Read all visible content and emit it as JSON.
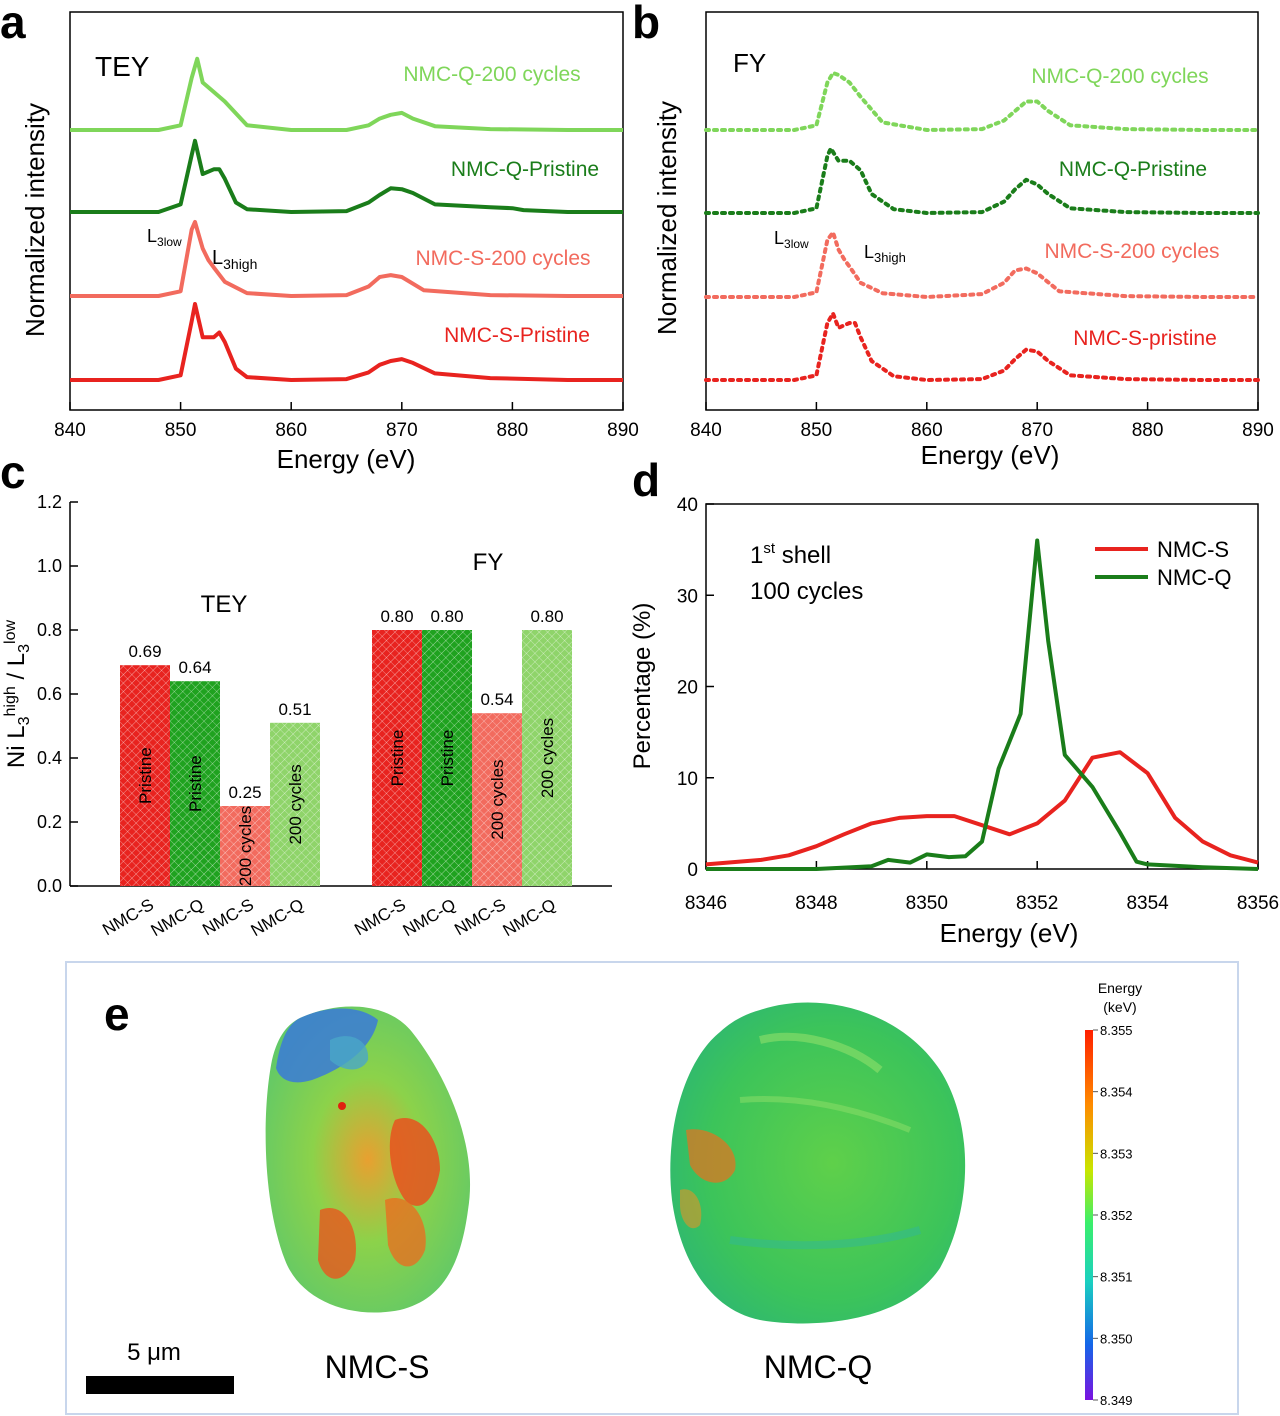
{
  "panels": {
    "a": {
      "letter": "a",
      "mode": "TEY",
      "ylabel": "Normalized intensity",
      "xlabel": "Energy (eV)",
      "xticks": [
        "840",
        "850",
        "860",
        "870",
        "880",
        "890"
      ],
      "label_L3low": "L",
      "label_L3low_sub": "3low",
      "label_L3high": "L",
      "label_L3high_sub": "3high"
    },
    "b": {
      "letter": "b",
      "mode": "FY",
      "ylabel": "Normalized intensity",
      "xlabel": "Energy (eV)",
      "xticks": [
        "840",
        "850",
        "860",
        "870",
        "880",
        "890"
      ],
      "label_L3low": "L",
      "label_L3low_sub": "3low",
      "label_L3high": "L",
      "label_L3high_sub": "3high"
    },
    "c": {
      "letter": "c",
      "ylabel_pre": "Ni L",
      "ylabel_sub1": "3",
      "ylabel_sup1": "high",
      "ylabel_mid": " / L",
      "ylabel_sub2": "3",
      "ylabel_sup2": "low",
      "yticks": [
        "0.0",
        "0.2",
        "0.4",
        "0.6",
        "0.8",
        "1.0",
        "1.2"
      ],
      "group_tey": "TEY",
      "group_fy": "FY"
    },
    "d": {
      "letter": "d",
      "ylabel": "Percentage (%)",
      "xlabel": "Energy (eV)",
      "xticks": [
        "8346",
        "8348",
        "8350",
        "8352",
        "8354",
        "8356"
      ],
      "yticks": [
        "0",
        "10",
        "20",
        "30",
        "40"
      ],
      "anno_line1_num": "1",
      "anno_line1_sup": "st",
      "anno_line1_rest": " shell",
      "anno_line2": "100 cycles",
      "legend": [
        "NMC-S",
        "NMC-Q"
      ]
    },
    "e": {
      "letter": "e",
      "scalebar": "5 μm",
      "particle_left": "NMC-S",
      "particle_right": "NMC-Q",
      "colorbar_title_1": "Energy",
      "colorbar_title_2": "(keV)",
      "colorbar_ticks": [
        "8.355",
        "8.354",
        "8.353",
        "8.352",
        "8.351",
        "8.350",
        "8.349"
      ]
    }
  },
  "colors": {
    "light_green": "#7fd65a",
    "green": "#1a7d1a",
    "salmon": "#f26b5e",
    "red": "#e8231f",
    "bar_red": "#e8231f",
    "bar_green": "#1fa21f",
    "bar_salmon": "#f26b5e",
    "bar_lightgreen": "#8fd46a"
  },
  "chart_data": [
    {
      "panel": "a",
      "type": "line",
      "title": "TEY",
      "xlabel": "Energy (eV)",
      "ylabel": "Normalized intensity",
      "xlim": [
        840,
        890
      ],
      "series": [
        {
          "name": "NMC-Q-200 cycles",
          "color": "#7fd65a",
          "x": [
            840,
            848,
            850,
            851,
            851.5,
            852,
            853,
            854,
            856,
            860,
            865,
            867,
            868,
            869,
            870,
            871,
            873,
            878,
            885,
            890
          ],
          "values": [
            0,
            0,
            0.05,
            0.55,
            0.75,
            0.5,
            0.4,
            0.3,
            0.05,
            0,
            0,
            0.05,
            0.12,
            0.16,
            0.18,
            0.12,
            0.04,
            0.01,
            0,
            0
          ]
        },
        {
          "name": "NMC-Q-Pristine",
          "color": "#1a7d1a",
          "x": [
            840,
            848,
            850,
            851,
            851.3,
            852,
            853,
            853.5,
            854,
            855,
            856,
            860,
            865,
            867,
            868,
            869,
            870,
            871,
            873,
            878,
            880,
            881,
            885,
            890
          ],
          "values": [
            0,
            0,
            0.08,
            0.6,
            0.75,
            0.4,
            0.45,
            0.45,
            0.35,
            0.1,
            0.03,
            0,
            0.01,
            0.1,
            0.18,
            0.25,
            0.24,
            0.2,
            0.08,
            0.05,
            0.04,
            0.02,
            0,
            0
          ]
        },
        {
          "name": "NMC-S-200 cycles",
          "color": "#f26b5e",
          "x": [
            840,
            848,
            850,
            851,
            851.3,
            852,
            852.5,
            853,
            854,
            856,
            860,
            865,
            867,
            868,
            869,
            870,
            872,
            878,
            885,
            890
          ],
          "values": [
            0,
            0,
            0.05,
            0.7,
            0.78,
            0.5,
            0.38,
            0.3,
            0.15,
            0.03,
            0,
            0.01,
            0.1,
            0.2,
            0.22,
            0.2,
            0.06,
            0.01,
            0,
            0
          ]
        },
        {
          "name": "NMC-S-Pristine",
          "color": "#e8231f",
          "x": [
            840,
            848,
            850,
            851,
            851.3,
            852,
            853,
            853.5,
            854,
            855,
            856,
            860,
            865,
            867,
            868,
            869,
            870,
            871,
            873,
            878,
            885,
            890
          ],
          "values": [
            0,
            0,
            0.05,
            0.62,
            0.8,
            0.45,
            0.45,
            0.5,
            0.4,
            0.12,
            0.03,
            0,
            0.01,
            0.08,
            0.16,
            0.2,
            0.22,
            0.18,
            0.07,
            0.02,
            0,
            0
          ]
        }
      ],
      "annotations": [
        "L3low",
        "L3high"
      ]
    },
    {
      "panel": "b",
      "type": "line",
      "title": "FY",
      "xlabel": "Energy (eV)",
      "ylabel": "Normalized intensity",
      "xlim": [
        840,
        890
      ],
      "series": [
        {
          "name": "NMC-Q-200 cycles",
          "color": "#7fd65a",
          "x": [
            840,
            848,
            850,
            851,
            851.5,
            852,
            853,
            854,
            856,
            860,
            865,
            867,
            868,
            869,
            870,
            871,
            873,
            878,
            885,
            890
          ],
          "values": [
            0,
            0,
            0.05,
            0.5,
            0.6,
            0.58,
            0.5,
            0.35,
            0.08,
            0,
            0.01,
            0.1,
            0.2,
            0.3,
            0.3,
            0.2,
            0.05,
            0.01,
            0,
            0
          ]
        },
        {
          "name": "NMC-Q-Pristine",
          "color": "#1a7d1a",
          "x": [
            840,
            848,
            850,
            851,
            851.3,
            852,
            853,
            854,
            855,
            857,
            860,
            865,
            867,
            868,
            869,
            870,
            871,
            873,
            878,
            885,
            890
          ],
          "values": [
            0,
            0,
            0.05,
            0.6,
            0.68,
            0.55,
            0.55,
            0.45,
            0.2,
            0.04,
            0,
            0.01,
            0.12,
            0.25,
            0.35,
            0.3,
            0.2,
            0.05,
            0.01,
            0,
            0
          ]
        },
        {
          "name": "NMC-S-200 cycles",
          "color": "#f26b5e",
          "x": [
            840,
            848,
            850,
            851,
            851.5,
            852,
            852.5,
            853,
            854,
            856,
            860,
            865,
            867,
            868,
            869,
            870,
            872,
            878,
            885,
            890
          ],
          "values": [
            0,
            0,
            0.05,
            0.6,
            0.68,
            0.5,
            0.4,
            0.32,
            0.15,
            0.04,
            0,
            0.03,
            0.15,
            0.28,
            0.3,
            0.25,
            0.06,
            0.01,
            0,
            0
          ]
        },
        {
          "name": "NMC-S-pristine",
          "color": "#e8231f",
          "x": [
            840,
            848,
            850,
            851,
            851.5,
            852,
            853,
            853.5,
            854,
            855,
            857,
            860,
            865,
            867,
            868,
            869,
            870,
            871,
            873,
            878,
            885,
            890
          ],
          "values": [
            0,
            0,
            0.05,
            0.6,
            0.7,
            0.55,
            0.6,
            0.6,
            0.45,
            0.2,
            0.04,
            0,
            0.01,
            0.1,
            0.22,
            0.32,
            0.3,
            0.2,
            0.05,
            0.01,
            0,
            0
          ]
        }
      ],
      "annotations": [
        "L3low",
        "L3high"
      ]
    },
    {
      "panel": "c",
      "type": "bar",
      "ylabel": "Ni L3high / L3low",
      "ylim": [
        0,
        1.2
      ],
      "groups": [
        {
          "name": "TEY",
          "bars": [
            {
              "category": "NMC-S",
              "label": "Pristine",
              "value": 0.69,
              "color": "#e8231f"
            },
            {
              "category": "NMC-Q",
              "label": "Pristine",
              "value": 0.64,
              "color": "#1fa21f"
            },
            {
              "category": "NMC-S",
              "label": "200 cycles",
              "value": 0.25,
              "color": "#f26b5e"
            },
            {
              "category": "NMC-Q",
              "label": "200 cycles",
              "value": 0.51,
              "color": "#8fd46a"
            }
          ]
        },
        {
          "name": "FY",
          "bars": [
            {
              "category": "NMC-S",
              "label": "Pristine",
              "value": 0.8,
              "color": "#e8231f"
            },
            {
              "category": "NMC-Q",
              "label": "Pristine",
              "value": 0.8,
              "color": "#1fa21f"
            },
            {
              "category": "NMC-S",
              "label": "200 cycles",
              "value": 0.54,
              "color": "#f26b5e"
            },
            {
              "category": "NMC-Q",
              "label": "200 cycles",
              "value": 0.8,
              "color": "#8fd46a"
            }
          ]
        }
      ],
      "value_labels": [
        "0.69",
        "0.64",
        "0.25",
        "0.51",
        "0.80",
        "0.80",
        "0.54",
        "0.80"
      ]
    },
    {
      "panel": "d",
      "type": "line",
      "xlabel": "Energy (eV)",
      "ylabel": "Percentage (%)",
      "xlim": [
        8346,
        8356
      ],
      "ylim": [
        0,
        40
      ],
      "series": [
        {
          "name": "NMC-S",
          "color": "#e8231f",
          "x": [
            8346,
            8347,
            8347.5,
            8348,
            8348.5,
            8349,
            8349.5,
            8350,
            8350.5,
            8351,
            8351.5,
            8352,
            8352.5,
            8353,
            8353.5,
            8354,
            8354.5,
            8355,
            8355.5,
            8356
          ],
          "values": [
            0.5,
            1.0,
            1.5,
            2.5,
            3.8,
            5.0,
            5.6,
            5.8,
            5.8,
            4.8,
            3.8,
            5.0,
            7.5,
            12.2,
            12.8,
            10.5,
            5.6,
            3.0,
            1.5,
            0.7
          ]
        },
        {
          "name": "NMC-Q",
          "color": "#1a7d1a",
          "x": [
            8346,
            8348,
            8349,
            8349.3,
            8349.7,
            8350,
            8350.4,
            8350.7,
            8351,
            8351.3,
            8351.7,
            8352,
            8352.2,
            8352.5,
            8353,
            8353.5,
            8353.8,
            8354,
            8355,
            8356
          ],
          "values": [
            0,
            0,
            0.3,
            1.0,
            0.7,
            1.6,
            1.3,
            1.4,
            3.0,
            11.0,
            17.0,
            36.0,
            25.0,
            12.5,
            9.0,
            4.0,
            0.8,
            0.5,
            0.2,
            0
          ]
        }
      ],
      "annotation": "1st shell 100 cycles"
    }
  ]
}
